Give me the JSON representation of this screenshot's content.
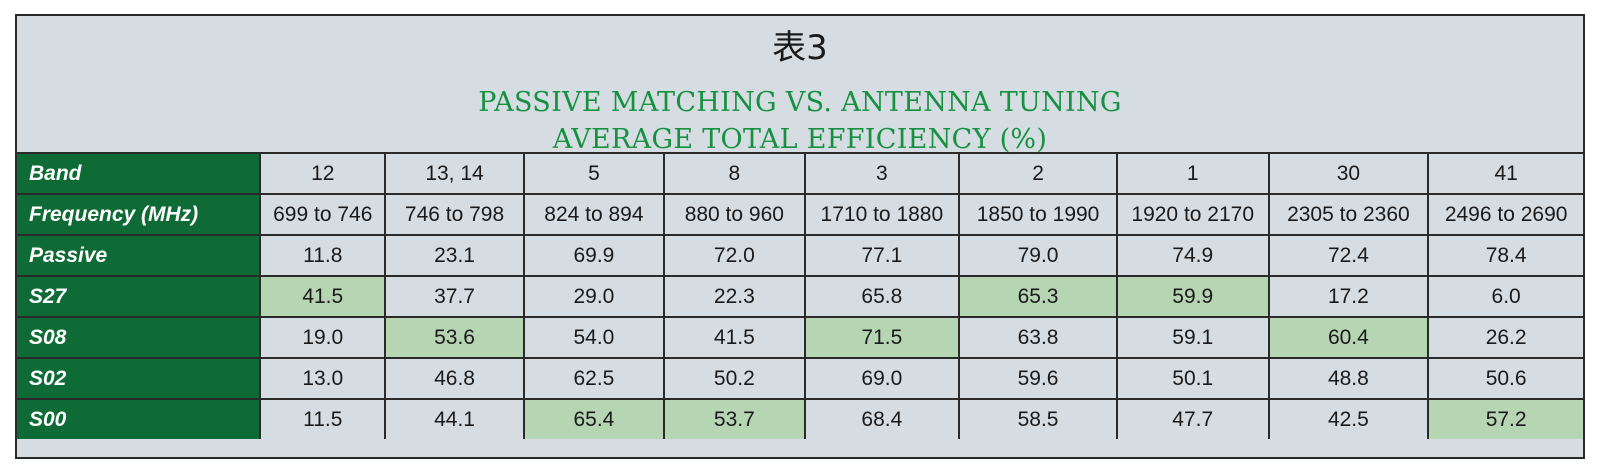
{
  "title_cn": "表3",
  "title_line1": "PASSIVE MATCHING VS. ANTENNA TUNING",
  "title_line2": "AVERAGE TOTAL EFFICIENCY (%)",
  "colors": {
    "row_header_bg": "#0e6b35",
    "highlight": "#b6d5b3",
    "cell_bg": "#d5dde3",
    "title_green": "#15913f"
  },
  "rows": [
    {
      "label": "Band",
      "cells": [
        "12",
        "13, 14",
        "5",
        "8",
        "3",
        "2",
        "1",
        "30",
        "41"
      ],
      "highlight": [
        false,
        false,
        false,
        false,
        false,
        false,
        false,
        false,
        false
      ]
    },
    {
      "label": "Frequency (MHz)",
      "cells": [
        "699 to 746",
        "746 to 798",
        "824 to 894",
        "880 to 960",
        "1710 to 1880",
        "1850 to 1990",
        "1920 to 2170",
        "2305 to 2360",
        "2496 to 2690"
      ],
      "highlight": [
        false,
        false,
        false,
        false,
        false,
        false,
        false,
        false,
        false
      ]
    },
    {
      "label": "Passive",
      "cells": [
        "11.8",
        "23.1",
        "69.9",
        "72.0",
        "77.1",
        "79.0",
        "74.9",
        "72.4",
        "78.4"
      ],
      "highlight": [
        false,
        false,
        false,
        false,
        false,
        false,
        false,
        false,
        false
      ]
    },
    {
      "label": "S27",
      "cells": [
        "41.5",
        "37.7",
        "29.0",
        "22.3",
        "65.8",
        "65.3",
        "59.9",
        "17.2",
        "6.0"
      ],
      "highlight": [
        true,
        false,
        false,
        false,
        false,
        true,
        true,
        false,
        false
      ]
    },
    {
      "label": "S08",
      "cells": [
        "19.0",
        "53.6",
        "54.0",
        "41.5",
        "71.5",
        "63.8",
        "59.1",
        "60.4",
        "26.2"
      ],
      "highlight": [
        false,
        true,
        false,
        false,
        true,
        false,
        false,
        true,
        false
      ]
    },
    {
      "label": "S02",
      "cells": [
        "13.0",
        "46.8",
        "62.5",
        "50.2",
        "69.0",
        "59.6",
        "50.1",
        "48.8",
        "50.6"
      ],
      "highlight": [
        false,
        false,
        false,
        false,
        false,
        false,
        false,
        false,
        false
      ]
    },
    {
      "label": "S00",
      "cells": [
        "11.5",
        "44.1",
        "65.4",
        "53.7",
        "68.4",
        "58.5",
        "47.7",
        "42.5",
        "57.2"
      ],
      "highlight": [
        false,
        false,
        true,
        true,
        false,
        false,
        false,
        false,
        true
      ]
    }
  ]
}
